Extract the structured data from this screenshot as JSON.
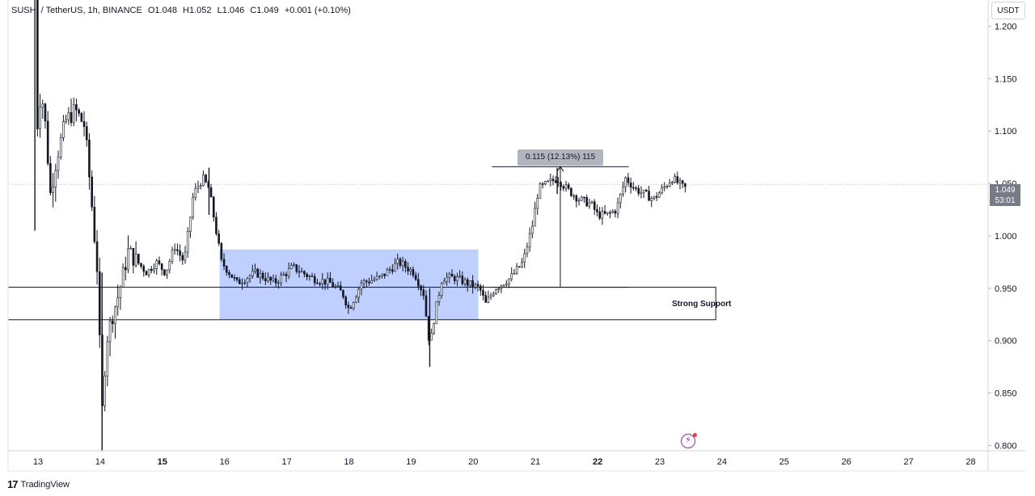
{
  "header": {
    "symbol": "SUSHI / TetherUS, 1h, BINANCE",
    "open": "O1.048",
    "high": "H1.052",
    "low": "L1.046",
    "close": "C1.049",
    "change": "+0.001 (+0.10%)"
  },
  "price_axis": {
    "currency": "USDT",
    "last_price": "1.049",
    "countdown": "53:01"
  },
  "annotations": {
    "measure_label": "0.115 (12.13%) 115",
    "support_label": "Strong Support"
  },
  "branding": {
    "logo_text": "TradingView"
  },
  "colors": {
    "candle": "#131722",
    "range_box": "#bcccff",
    "grid_line": "#e0e3eb",
    "last_price_line": "#c0c4cc"
  },
  "chart_data": {
    "type": "candlestick",
    "title": "",
    "xlabel": "",
    "ylabel": "",
    "ylim": [
      0.795,
      1.225
    ],
    "y_ticks": [
      "1.200",
      "1.150",
      "1.100",
      "1.050",
      "1.000",
      "0.950",
      "0.900",
      "0.850",
      "0.800"
    ],
    "x_ticks": [
      {
        "label": "13",
        "day": 13,
        "bold": false
      },
      {
        "label": "14",
        "day": 14,
        "bold": false
      },
      {
        "label": "15",
        "day": 15,
        "bold": true
      },
      {
        "label": "16",
        "day": 16,
        "bold": false
      },
      {
        "label": "17",
        "day": 17,
        "bold": false
      },
      {
        "label": "18",
        "day": 18,
        "bold": false
      },
      {
        "label": "19",
        "day": 19,
        "bold": false
      },
      {
        "label": "20",
        "day": 20,
        "bold": false
      },
      {
        "label": "21",
        "day": 21,
        "bold": false
      },
      {
        "label": "22",
        "day": 22,
        "bold": true
      },
      {
        "label": "23",
        "day": 23,
        "bold": false
      },
      {
        "label": "24",
        "day": 24,
        "bold": false
      },
      {
        "label": "25",
        "day": 25,
        "bold": false
      },
      {
        "label": "26",
        "day": 26,
        "bold": false
      },
      {
        "label": "27",
        "day": 27,
        "bold": false
      },
      {
        "label": "28",
        "day": 28,
        "bold": false
      }
    ],
    "price_path": [
      [
        12.95,
        1.25
      ],
      [
        12.98,
        1.1
      ],
      [
        13.05,
        1.14
      ],
      [
        13.12,
        1.105
      ],
      [
        13.2,
        1.04
      ],
      [
        13.3,
        1.075
      ],
      [
        13.45,
        1.11
      ],
      [
        13.6,
        1.12
      ],
      [
        13.75,
        1.105
      ],
      [
        13.85,
        1.04
      ],
      [
        13.95,
        0.97
      ],
      [
        14.03,
        0.83
      ],
      [
        14.1,
        0.9
      ],
      [
        14.2,
        0.925
      ],
      [
        14.3,
        0.945
      ],
      [
        14.45,
        0.985
      ],
      [
        14.6,
        0.975
      ],
      [
        14.75,
        0.965
      ],
      [
        14.9,
        0.975
      ],
      [
        15.05,
        0.965
      ],
      [
        15.2,
        0.99
      ],
      [
        15.35,
        0.975
      ],
      [
        15.5,
        1.04
      ],
      [
        15.65,
        1.055
      ],
      [
        15.75,
        1.045
      ],
      [
        15.85,
        1.01
      ],
      [
        15.95,
        0.975
      ],
      [
        16.2,
        0.955
      ],
      [
        16.5,
        0.965
      ],
      [
        16.8,
        0.955
      ],
      [
        17.1,
        0.97
      ],
      [
        17.4,
        0.96
      ],
      [
        17.7,
        0.955
      ],
      [
        17.9,
        0.945
      ],
      [
        18.0,
        0.93
      ],
      [
        18.2,
        0.955
      ],
      [
        18.5,
        0.96
      ],
      [
        18.8,
        0.975
      ],
      [
        19.05,
        0.965
      ],
      [
        19.2,
        0.945
      ],
      [
        19.3,
        0.895
      ],
      [
        19.38,
        0.925
      ],
      [
        19.5,
        0.96
      ],
      [
        19.7,
        0.96
      ],
      [
        19.9,
        0.955
      ],
      [
        20.1,
        0.95
      ],
      [
        20.2,
        0.935
      ],
      [
        20.35,
        0.95
      ],
      [
        20.6,
        0.96
      ],
      [
        20.8,
        0.975
      ],
      [
        20.95,
        1.01
      ],
      [
        21.05,
        1.045
      ],
      [
        21.2,
        1.05
      ],
      [
        21.35,
        1.055
      ],
      [
        21.5,
        1.045
      ],
      [
        21.7,
        1.035
      ],
      [
        21.9,
        1.03
      ],
      [
        22.0,
        1.02
      ],
      [
        22.15,
        1.02
      ],
      [
        22.3,
        1.025
      ],
      [
        22.45,
        1.055
      ],
      [
        22.6,
        1.045
      ],
      [
        22.75,
        1.04
      ],
      [
        22.9,
        1.035
      ],
      [
        23.05,
        1.045
      ],
      [
        23.2,
        1.055
      ],
      [
        23.3,
        1.05
      ],
      [
        23.4,
        1.045
      ],
      [
        23.45,
        1.049
      ]
    ],
    "spikes": [
      {
        "day": 12.95,
        "high": 1.25,
        "low": 1.005
      },
      {
        "day": 14.03,
        "high": 0.965,
        "low": 0.795
      },
      {
        "day": 19.3,
        "high": 0.95,
        "low": 0.875
      },
      {
        "day": 15.75,
        "high": 1.065,
        "low": 1.02
      },
      {
        "day": 21.35,
        "high": 1.065,
        "low": 1.04
      }
    ],
    "range_box": {
      "x_start": 15.92,
      "x_end": 20.08,
      "y_top": 0.987,
      "y_bottom": 0.92
    },
    "support_zone": {
      "x_start": 12.4,
      "x_end": 23.9,
      "y_top": 0.951,
      "y_bottom": 0.92
    },
    "measure": {
      "x_start": 20.3,
      "x_end": 22.5,
      "x_arrow": 21.4,
      "y_start": 0.951,
      "y_end": 1.066
    },
    "last_price": 1.049
  }
}
